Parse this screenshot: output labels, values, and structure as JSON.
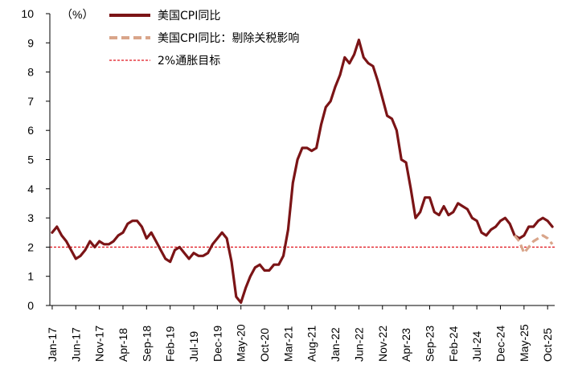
{
  "chart_data": {
    "type": "line",
    "unit_label": "（%）",
    "ylim": [
      0,
      10
    ],
    "y_ticks": [
      0,
      1,
      2,
      3,
      4,
      5,
      6,
      7,
      8,
      9,
      10
    ],
    "x_start": "2017-01",
    "x_end": "2025-11",
    "x_tick_labels": [
      "Jan-17",
      "Jun-17",
      "Nov-17",
      "Apr-18",
      "Sep-18",
      "Feb-19",
      "Jul-19",
      "Dec-19",
      "May-20",
      "Oct-20",
      "Mar-21",
      "Aug-21",
      "Jan-22",
      "Jun-22",
      "Nov-22",
      "Apr-23",
      "Sep-23",
      "Feb-24",
      "Jul-24",
      "Dec-24",
      "May-25",
      "Oct-25"
    ],
    "series": [
      {
        "name": "美国CPI同比",
        "color": "#7b1416",
        "style": "solid",
        "start_index": 0,
        "values": [
          2.5,
          2.7,
          2.4,
          2.2,
          1.9,
          1.6,
          1.7,
          1.9,
          2.2,
          2.0,
          2.2,
          2.1,
          2.1,
          2.2,
          2.4,
          2.5,
          2.8,
          2.9,
          2.9,
          2.7,
          2.3,
          2.5,
          2.2,
          1.9,
          1.6,
          1.5,
          1.9,
          2.0,
          1.8,
          1.6,
          1.8,
          1.7,
          1.7,
          1.8,
          2.1,
          2.3,
          2.5,
          2.3,
          1.5,
          0.3,
          0.1,
          0.6,
          1.0,
          1.3,
          1.4,
          1.2,
          1.2,
          1.4,
          1.4,
          1.7,
          2.6,
          4.2,
          5.0,
          5.4,
          5.4,
          5.3,
          5.4,
          6.2,
          6.8,
          7.0,
          7.5,
          7.9,
          8.5,
          8.3,
          8.6,
          9.1,
          8.5,
          8.3,
          8.2,
          7.7,
          7.1,
          6.5,
          6.4,
          6.0,
          5.0,
          4.9,
          4.0,
          3.0,
          3.2,
          3.7,
          3.7,
          3.2,
          3.1,
          3.4,
          3.1,
          3.2,
          3.5,
          3.4,
          3.3,
          3.0,
          2.9,
          2.5,
          2.4,
          2.6,
          2.7,
          2.9,
          3.0,
          2.8,
          2.4,
          2.3,
          2.4,
          2.7,
          2.7,
          2.9,
          3.0,
          2.9,
          2.7
        ]
      },
      {
        "name": "美国CPI同比：剔除关税影响",
        "color": "#d9a58a",
        "style": "dashed",
        "start_index": 98,
        "values": [
          2.4,
          2.2,
          1.8,
          2.0,
          2.2,
          2.3,
          2.4,
          2.3,
          2.1
        ]
      }
    ],
    "reference_line": {
      "name": "2%通胀目标",
      "value": 2,
      "color": "#e0141e",
      "style": "dotted"
    }
  }
}
